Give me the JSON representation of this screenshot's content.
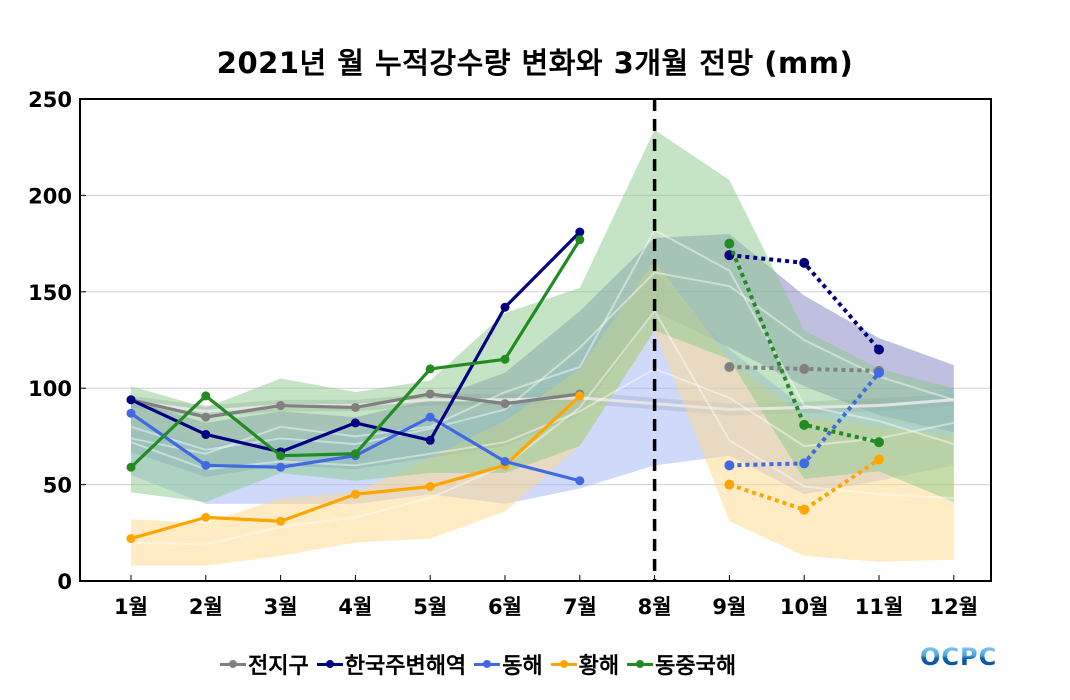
{
  "chart_data": {
    "type": "line",
    "title": "2021년 월 누적강수량 변화와 3개월 전망 (mm)",
    "xlabel": "",
    "ylabel": "",
    "ylim": [
      0,
      250
    ],
    "yticks": [
      0,
      50,
      100,
      150,
      200,
      250
    ],
    "categories": [
      "1월",
      "2월",
      "3월",
      "4월",
      "5월",
      "6월",
      "7월",
      "8월",
      "9월",
      "10월",
      "11월",
      "12월"
    ],
    "grid": "horizontal",
    "forecast_divider_at": "8월",
    "legend_position": "bottom",
    "series": [
      {
        "name": "전지구",
        "color": "#808080",
        "band_color": "#b0b0b0",
        "observed": [
          94,
          85,
          91,
          90,
          97,
          92,
          97,
          null,
          null,
          null,
          null,
          null
        ],
        "forecast": [
          null,
          null,
          null,
          null,
          null,
          null,
          null,
          null,
          111,
          110,
          109,
          null
        ],
        "normal": [
          93,
          88,
          91,
          91,
          94,
          94,
          95,
          92,
          89,
          90,
          91,
          94
        ],
        "range_upper": [
          96,
          91,
          94,
          94,
          97,
          97,
          98,
          95,
          92,
          93,
          95,
          97
        ],
        "range_lower": [
          90,
          85,
          88,
          88,
          91,
          91,
          92,
          89,
          86,
          87,
          88,
          91
        ]
      },
      {
        "name": "한국주변해역",
        "color": "#000080",
        "band_color": "#8080c0",
        "observed": [
          94,
          76,
          67,
          82,
          73,
          142,
          181,
          null,
          null,
          null,
          null,
          null
        ],
        "forecast": [
          null,
          null,
          null,
          null,
          null,
          null,
          null,
          null,
          169,
          165,
          120,
          null
        ],
        "normal": [
          80,
          68,
          74,
          71,
          79,
          89,
          121,
          160,
          153,
          125,
          106,
          94
        ],
        "range_upper": [
          94,
          82,
          88,
          85,
          94,
          108,
          140,
          178,
          180,
          148,
          126,
          112
        ],
        "range_lower": [
          67,
          54,
          60,
          58,
          64,
          70,
          86,
          140,
          121,
          101,
          86,
          77
        ]
      },
      {
        "name": "동해",
        "color": "#4169e1",
        "band_color": "#9fb4f5",
        "observed": [
          87,
          60,
          59,
          65,
          85,
          62,
          52,
          null,
          null,
          null,
          null,
          null
        ],
        "forecast": [
          null,
          null,
          null,
          null,
          null,
          null,
          null,
          null,
          60,
          61,
          108,
          null
        ],
        "normal": [
          72,
          58,
          62,
          60,
          66,
          72,
          88,
          110,
          95,
          70,
          74,
          82
        ],
        "range_upper": [
          83,
          70,
          75,
          78,
          83,
          90,
          120,
          160,
          120,
          90,
          90,
          100
        ],
        "range_lower": [
          55,
          40,
          40,
          40,
          45,
          40,
          48,
          60,
          65,
          45,
          52,
          60
        ]
      },
      {
        "name": "황해",
        "color": "#ffa500",
        "band_color": "#ffd98a",
        "observed": [
          22,
          33,
          31,
          45,
          49,
          60,
          96,
          null,
          null,
          null,
          null,
          null
        ],
        "forecast": [
          null,
          null,
          null,
          null,
          null,
          null,
          null,
          null,
          50,
          37,
          63,
          null
        ],
        "normal": [
          20,
          19,
          28,
          33,
          43,
          60,
          90,
          140,
          73,
          49,
          45,
          43
        ],
        "range_upper": [
          32,
          30,
          43,
          46,
          64,
          83,
          110,
          166,
          115,
          85,
          80,
          75
        ],
        "range_lower": [
          8,
          8,
          13,
          20,
          22,
          36,
          70,
          130,
          31,
          13,
          10,
          11
        ]
      },
      {
        "name": "동중국해",
        "color": "#228b22",
        "band_color": "#8cc98c",
        "observed": [
          59,
          96,
          65,
          66,
          110,
          115,
          177,
          null,
          null,
          null,
          null,
          null
        ],
        "forecast": [
          null,
          null,
          null,
          null,
          null,
          null,
          null,
          null,
          175,
          81,
          72,
          null
        ],
        "normal": [
          74,
          66,
          80,
          75,
          80,
          98,
          111,
          182,
          161,
          91,
          83,
          71
        ],
        "range_upper": [
          101,
          90,
          105,
          98,
          104,
          139,
          152,
          234,
          208,
          130,
          110,
          100
        ],
        "range_lower": [
          46,
          41,
          56,
          52,
          56,
          56,
          70,
          130,
          115,
          53,
          57,
          41
        ]
      }
    ]
  },
  "logo": {
    "text": "OCPC"
  }
}
